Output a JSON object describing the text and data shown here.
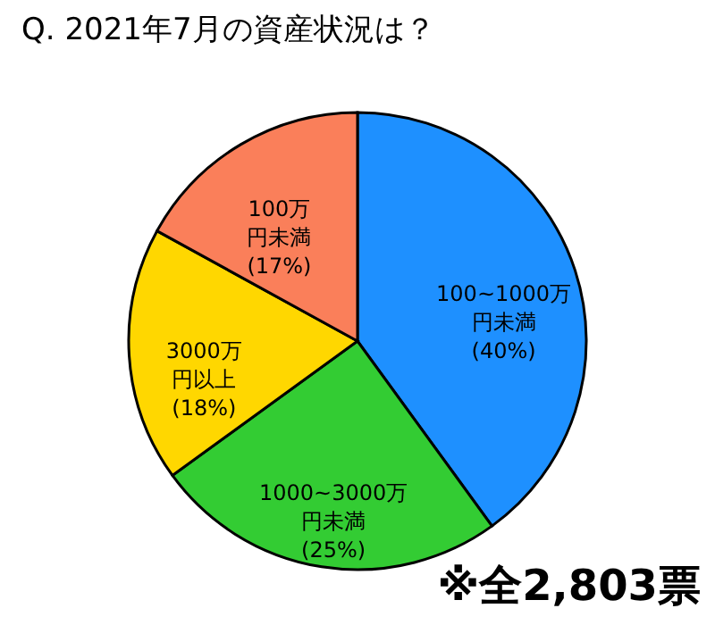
{
  "chart_data": {
    "type": "pie",
    "title": "Q. 2021年7月の資産状況は？",
    "categories": [
      "100~1000万円未満",
      "1000~3000万円未満",
      "3000万円以上",
      "100万円未満"
    ],
    "values": [
      40,
      25,
      18,
      17
    ],
    "colors": [
      "#1e90ff",
      "#33cc33",
      "#ffd700",
      "#fa7f5a"
    ],
    "value_labels": [
      "(40%)",
      "(25%)",
      "(18%)",
      "(17%)"
    ],
    "annotations": [
      "※全2,803票"
    ]
  }
}
